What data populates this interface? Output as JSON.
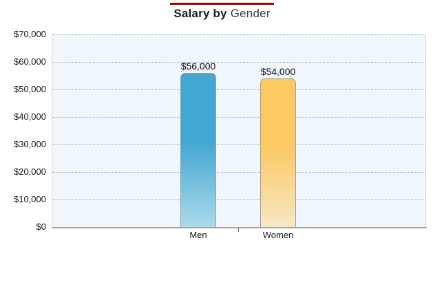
{
  "title": {
    "bold": "Salary by",
    "light": "Gender",
    "full": "Salary by Gender"
  },
  "accent_color": "#AA0000",
  "chart_data": {
    "type": "bar",
    "title": "Salary by Gender",
    "categories": [
      "Men",
      "Women"
    ],
    "values": [
      56000,
      54000
    ],
    "value_labels": [
      "$56,000",
      "$54,000"
    ],
    "xlabel": "",
    "ylabel": "",
    "ylim": [
      0,
      70000
    ],
    "ytick_step": 10000,
    "ytick_labels": [
      "$0",
      "$10,000",
      "$20,000",
      "$30,000",
      "$40,000",
      "$50,000",
      "$60,000",
      "$70,000"
    ],
    "grid": "horizontal-dotted",
    "legend": "none",
    "plot_bg": "#EFF7FC",
    "axis_line_color": "#A6A6A6",
    "bar_colors": [
      {
        "series": "Men",
        "top": "#43A7D3",
        "bottom": "#ACDAEB"
      },
      {
        "series": "Women",
        "top": "#FBC862",
        "bottom": "#F7E7C4"
      }
    ]
  }
}
